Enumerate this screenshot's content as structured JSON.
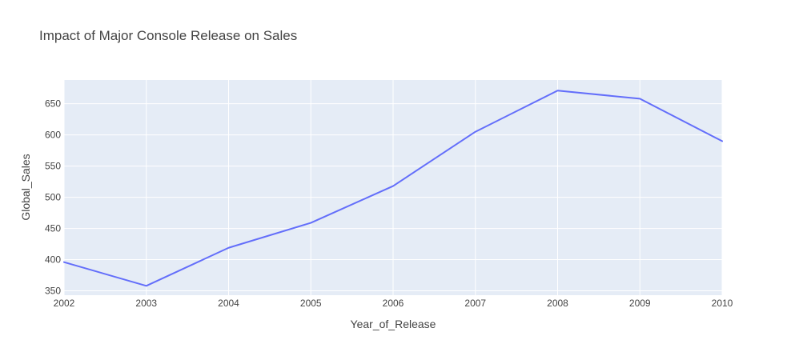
{
  "chart_data": {
    "type": "line",
    "title": "Impact of Major Console Release on Sales",
    "xlabel": "Year_of_Release",
    "ylabel": "Global_Sales",
    "x": [
      2002,
      2003,
      2004,
      2005,
      2006,
      2007,
      2008,
      2009,
      2010
    ],
    "series": [
      {
        "values": [
          396,
          358,
          419,
          459,
          518,
          605,
          671,
          658,
          590
        ]
      }
    ],
    "xlim": [
      2002,
      2010
    ],
    "ylim": [
      343,
      688
    ],
    "x_ticks": [
      "2002",
      "2003",
      "2004",
      "2005",
      "2006",
      "2007",
      "2008",
      "2009",
      "2010"
    ],
    "y_ticks": [
      {
        "value": 350,
        "label": "350"
      },
      {
        "value": 400,
        "label": "400"
      },
      {
        "value": 450,
        "label": "450"
      },
      {
        "value": 500,
        "label": "500"
      },
      {
        "value": 550,
        "label": "550"
      },
      {
        "value": 600,
        "label": "600"
      },
      {
        "value": 650,
        "label": "650"
      }
    ],
    "grid": true,
    "colors": {
      "line": "#636efa",
      "plot_background": "#e5ecf6",
      "grid": "#ffffff",
      "text": "#444444"
    }
  }
}
